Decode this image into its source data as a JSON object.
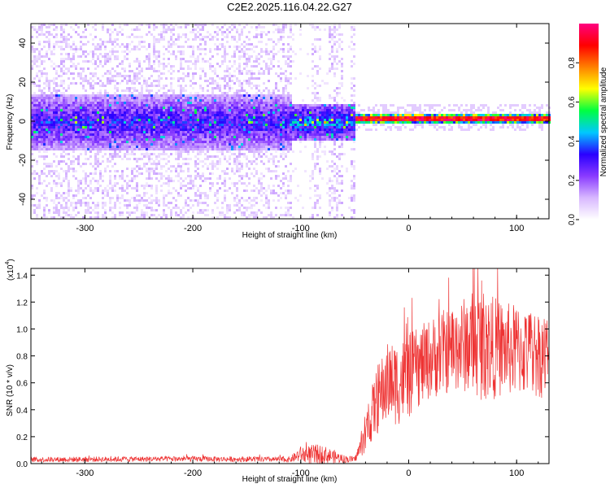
{
  "figure_title": "C2E2.2025.116.04.22.G27",
  "chart_data": [
    {
      "type": "heatmap",
      "title": "C2E2.2025.116.04.22.G27",
      "xlabel": "Height of straight line (km)",
      "ylabel": "Frequency (Hz)",
      "xlim": [
        -350,
        130
      ],
      "ylim": [
        -50,
        50
      ],
      "x_ticks": [
        -300,
        -200,
        -100,
        0,
        100
      ],
      "y_ticks": [
        -40,
        -20,
        0,
        20,
        40
      ],
      "colorbar": {
        "label": "Normalized spectral amplitude",
        "range": [
          0,
          1
        ],
        "ticks": [
          "0.0",
          "0.2",
          "0.4",
          "0.6",
          "0.8"
        ],
        "colors": [
          "#ffffff",
          "#d8b8ff",
          "#8a3bff",
          "#2a00ff",
          "#00c8ff",
          "#00ff40",
          "#ffff00",
          "#ff8000",
          "#ff0000",
          "#ff0080"
        ]
      },
      "description_regions": [
        {
          "x_range": [
            -350,
            -110
          ],
          "signal_freq": 0,
          "spread_hz": 15,
          "peak_amplitude": 0.35
        },
        {
          "x_range": [
            -110,
            -50
          ],
          "signal_freq": 0,
          "spread_hz": 10,
          "peak_amplitude": 0.45
        },
        {
          "x_range": [
            -50,
            130
          ],
          "signal_freq": 2,
          "spread_hz": 3,
          "peak_amplitude": 0.95
        }
      ],
      "grid": false
    },
    {
      "type": "line",
      "xlabel": "Height of straight line (km)",
      "ylabel": "SNR (10 * v/v)",
      "y_multiplier_label": "(x10",
      "y_multiplier_exp": "4",
      "xlim": [
        -350,
        130
      ],
      "ylim": [
        0,
        1.45
      ],
      "x_ticks": [
        -300,
        -200,
        -100,
        0,
        100
      ],
      "y_ticks": [
        "0.0",
        "0.2",
        "0.4",
        "0.6",
        "0.8",
        "1.0",
        "1.2",
        "1.4"
      ],
      "line_color": "#ee3333",
      "envelope": {
        "x": [
          -350,
          -200,
          -110,
          -100,
          -90,
          -80,
          -60,
          -50,
          -40,
          -35,
          -30,
          -20,
          -10,
          0,
          10,
          20,
          30,
          40,
          50,
          60,
          70,
          80,
          90,
          100,
          110,
          120,
          130
        ],
        "mean": [
          0.03,
          0.035,
          0.03,
          0.07,
          0.06,
          0.07,
          0.035,
          0.03,
          0.2,
          0.35,
          0.45,
          0.6,
          0.6,
          0.65,
          0.72,
          0.78,
          0.82,
          0.85,
          0.88,
          0.9,
          0.88,
          0.86,
          0.85,
          0.84,
          0.83,
          0.82,
          0.8
        ],
        "amplitude": [
          0.02,
          0.02,
          0.02,
          0.06,
          0.08,
          0.07,
          0.03,
          0.02,
          0.12,
          0.2,
          0.25,
          0.3,
          0.32,
          0.32,
          0.3,
          0.3,
          0.32,
          0.32,
          0.35,
          0.4,
          0.42,
          0.38,
          0.35,
          0.35,
          0.33,
          0.33,
          0.32
        ]
      },
      "grid": false
    }
  ]
}
